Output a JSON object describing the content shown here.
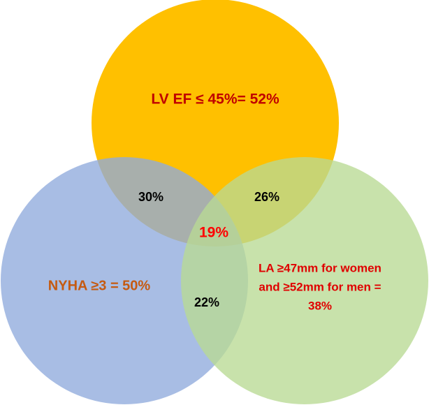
{
  "sets": [
    {
      "label": "LV EF ≤ 45%= 52%"
    },
    {
      "label": "NYHA ≥3 = 50%"
    },
    {
      "label_lines": [
        "LA ≥47mm for women",
        "and ≥52mm for men =",
        "38%"
      ]
    }
  ],
  "intersections": {
    "ef_nyha": "30%",
    "ef_la": "26%",
    "nyha_la": "22%",
    "all": "19%"
  }
}
